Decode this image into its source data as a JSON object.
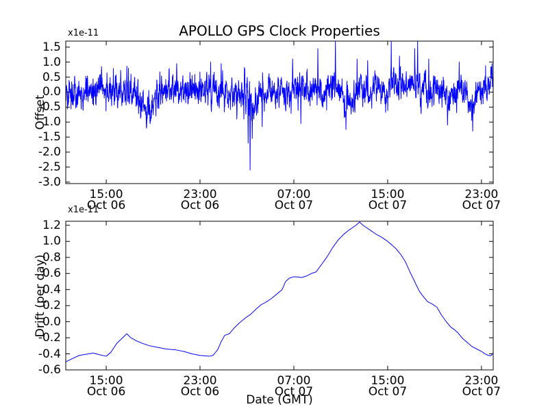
{
  "figure": {
    "background": "#ffffff",
    "frame_color": "#000000",
    "text_color": "#000000",
    "line_color": "#0000ff"
  },
  "chart_data": [
    {
      "id": "offset",
      "type": "line",
      "title": "APOLLO GPS Clock Properties",
      "ylabel": "Offset",
      "y_offset_text": "x1e-11",
      "y_unit_scale": "1e-11",
      "x_unit": "hours since Oct 06 00:00 GMT",
      "xlim": [
        11.55,
        48.0
      ],
      "ylim": [
        -3.05,
        1.7
      ],
      "grid": false,
      "legend": null,
      "line_color": "#0000ff",
      "yticks": {
        "values": [
          1.5,
          1.0,
          0.5,
          0.0,
          -0.5,
          -1.0,
          -1.5,
          -2.0,
          -2.5,
          -3.0
        ],
        "labels": [
          "1.5",
          "1.0",
          "0.5",
          "0.0",
          "-0.5",
          "-1.0",
          "-1.5",
          "-2.0",
          "-2.5",
          "-3.0"
        ]
      },
      "xticks": {
        "values": [
          15,
          23,
          31,
          39,
          47
        ],
        "labels": [
          [
            "15:00",
            "Oct 06"
          ],
          [
            "23:00",
            "Oct 06"
          ],
          [
            "07:00",
            "Oct 07"
          ],
          [
            "15:00",
            "Oct 07"
          ],
          [
            "23:00",
            "Oct 07"
          ]
        ]
      },
      "series_model": {
        "description": "dense noisy GPS clock offset samples, mean near 0, typical spread +/-0.7e-11, with isolated spikes",
        "baseline_anchors": [
          [
            11.55,
            -0.15
          ],
          [
            12.2,
            -0.05
          ],
          [
            12.8,
            -0.12
          ],
          [
            13.4,
            0.05
          ],
          [
            14.0,
            -0.15
          ],
          [
            14.5,
            0.2
          ],
          [
            15.0,
            0.0
          ],
          [
            15.6,
            0.15
          ],
          [
            16.2,
            0.0
          ],
          [
            16.8,
            -0.1
          ],
          [
            17.4,
            -0.05
          ],
          [
            18.0,
            -0.2
          ],
          [
            18.4,
            -0.5
          ],
          [
            18.9,
            -0.35
          ],
          [
            19.4,
            -0.1
          ],
          [
            20.0,
            0.05
          ],
          [
            20.6,
            0.1
          ],
          [
            21.2,
            0.05
          ],
          [
            21.8,
            0.1
          ],
          [
            22.4,
            0.15
          ],
          [
            23.0,
            0.1
          ],
          [
            23.6,
            0.25
          ],
          [
            24.2,
            0.1
          ],
          [
            24.8,
            0.05
          ],
          [
            25.4,
            -0.1
          ],
          [
            26.0,
            -0.05
          ],
          [
            26.6,
            -0.1
          ],
          [
            27.0,
            -0.3
          ],
          [
            27.6,
            -0.3
          ],
          [
            28.2,
            -0.05
          ],
          [
            28.8,
            0.0
          ],
          [
            29.4,
            -0.1
          ],
          [
            30.0,
            0.0
          ],
          [
            30.6,
            0.1
          ],
          [
            31.2,
            0.05
          ],
          [
            31.8,
            0.1
          ],
          [
            32.4,
            0.05
          ],
          [
            33.0,
            0.15
          ],
          [
            33.6,
            0.1
          ],
          [
            34.2,
            0.2
          ],
          [
            34.8,
            0.1
          ],
          [
            35.3,
            -0.25
          ],
          [
            35.8,
            -0.3
          ],
          [
            36.3,
            -0.05
          ],
          [
            36.8,
            0.1
          ],
          [
            37.4,
            0.0
          ],
          [
            38.0,
            0.15
          ],
          [
            38.6,
            0.1
          ],
          [
            39.2,
            0.3
          ],
          [
            39.8,
            0.15
          ],
          [
            40.4,
            0.2
          ],
          [
            41.0,
            0.25
          ],
          [
            41.6,
            0.15
          ],
          [
            42.2,
            0.1
          ],
          [
            42.8,
            0.05
          ],
          [
            43.4,
            -0.05
          ],
          [
            44.0,
            -0.25
          ],
          [
            44.6,
            -0.1
          ],
          [
            45.2,
            0.1
          ],
          [
            45.8,
            0.0
          ],
          [
            46.2,
            -0.4
          ],
          [
            46.7,
            -0.1
          ],
          [
            47.2,
            0.1
          ],
          [
            47.7,
            0.2
          ],
          [
            48.0,
            0.3
          ]
        ],
        "noise": {
          "seed": 20071006,
          "sigma": 0.23,
          "ar": 0.5,
          "samples": 2190
        },
        "spike_events": [
          [
            14.6,
            0.85
          ],
          [
            16.9,
            0.8
          ],
          [
            18.45,
            -1.2
          ],
          [
            18.75,
            -1.05
          ],
          [
            21.0,
            0.95
          ],
          [
            23.9,
            1.0
          ],
          [
            24.8,
            0.95
          ],
          [
            27.1,
            -1.7
          ],
          [
            27.27,
            -2.6
          ],
          [
            27.45,
            -1.55
          ],
          [
            28.3,
            -1.15
          ],
          [
            30.9,
            1.1
          ],
          [
            31.6,
            -1.05
          ],
          [
            33.05,
            1.45
          ],
          [
            34.55,
            1.7
          ],
          [
            35.45,
            -1.25
          ],
          [
            36.4,
            1.1
          ],
          [
            37.3,
            1.05
          ],
          [
            39.3,
            1.7
          ],
          [
            40.0,
            1.2
          ],
          [
            41.3,
            1.45
          ],
          [
            41.55,
            1.7
          ],
          [
            42.5,
            1.1
          ],
          [
            44.1,
            -1.1
          ],
          [
            45.1,
            1.0
          ],
          [
            46.25,
            -1.3
          ],
          [
            47.9,
            0.95
          ]
        ]
      }
    },
    {
      "id": "drift",
      "type": "line",
      "ylabel": "Drift (per day)",
      "xlabel": "Date (GMT)",
      "y_offset_text": "x1e-11",
      "y_unit_scale": "1e-11",
      "x_unit": "hours since Oct 06 00:00 GMT",
      "xlim": [
        11.55,
        48.0
      ],
      "ylim": [
        -0.6,
        1.25
      ],
      "grid": false,
      "legend": null,
      "line_color": "#0000ff",
      "yticks": {
        "values": [
          1.2,
          1.0,
          0.8,
          0.6,
          0.4,
          0.2,
          0.0,
          -0.2,
          -0.4,
          -0.6
        ],
        "labels": [
          "1.2",
          "1.0",
          "0.8",
          "0.6",
          "0.4",
          "0.2",
          "0.0",
          "-0.2",
          "-0.4",
          "-0.6"
        ]
      },
      "xticks": {
        "values": [
          15,
          23,
          31,
          39,
          47
        ],
        "labels": [
          [
            "15:00",
            "Oct 06"
          ],
          [
            "23:00",
            "Oct 06"
          ],
          [
            "07:00",
            "Oct 07"
          ],
          [
            "15:00",
            "Oct 07"
          ],
          [
            "23:00",
            "Oct 07"
          ]
        ]
      },
      "points": [
        [
          11.55,
          -0.5
        ],
        [
          12.1,
          -0.46
        ],
        [
          12.7,
          -0.42
        ],
        [
          13.3,
          -0.405
        ],
        [
          13.9,
          -0.39
        ],
        [
          14.4,
          -0.41
        ],
        [
          15.0,
          -0.43
        ],
        [
          15.4,
          -0.38
        ],
        [
          15.9,
          -0.27
        ],
        [
          16.4,
          -0.2
        ],
        [
          16.75,
          -0.15
        ],
        [
          17.1,
          -0.2
        ],
        [
          17.6,
          -0.24
        ],
        [
          18.1,
          -0.27
        ],
        [
          18.7,
          -0.3
        ],
        [
          19.4,
          -0.32
        ],
        [
          20.1,
          -0.34
        ],
        [
          20.9,
          -0.35
        ],
        [
          21.6,
          -0.37
        ],
        [
          22.3,
          -0.4
        ],
        [
          23.0,
          -0.42
        ],
        [
          23.4,
          -0.425
        ],
        [
          23.8,
          -0.43
        ],
        [
          24.1,
          -0.42
        ],
        [
          24.5,
          -0.35
        ],
        [
          24.8,
          -0.25
        ],
        [
          25.1,
          -0.17
        ],
        [
          25.5,
          -0.15
        ],
        [
          25.9,
          -0.08
        ],
        [
          26.4,
          -0.01
        ],
        [
          26.9,
          0.05
        ],
        [
          27.3,
          0.09
        ],
        [
          27.8,
          0.16
        ],
        [
          28.2,
          0.21
        ],
        [
          28.7,
          0.25
        ],
        [
          29.1,
          0.29
        ],
        [
          29.6,
          0.35
        ],
        [
          30.0,
          0.4
        ],
        [
          30.3,
          0.5
        ],
        [
          30.6,
          0.54
        ],
        [
          31.0,
          0.56
        ],
        [
          31.4,
          0.555
        ],
        [
          31.7,
          0.55
        ],
        [
          32.1,
          0.57
        ],
        [
          32.5,
          0.6
        ],
        [
          32.9,
          0.62
        ],
        [
          33.3,
          0.7
        ],
        [
          33.8,
          0.8
        ],
        [
          34.3,
          0.92
        ],
        [
          34.8,
          1.02
        ],
        [
          35.2,
          1.08
        ],
        [
          35.6,
          1.13
        ],
        [
          36.0,
          1.17
        ],
        [
          36.3,
          1.2
        ],
        [
          36.6,
          1.24
        ],
        [
          36.9,
          1.2
        ],
        [
          37.2,
          1.17
        ],
        [
          37.6,
          1.13
        ],
        [
          38.0,
          1.09
        ],
        [
          38.5,
          1.05
        ],
        [
          39.0,
          1.0
        ],
        [
          39.4,
          0.95
        ],
        [
          39.7,
          0.91
        ],
        [
          40.1,
          0.84
        ],
        [
          40.5,
          0.75
        ],
        [
          40.9,
          0.62
        ],
        [
          41.3,
          0.5
        ],
        [
          41.7,
          0.38
        ],
        [
          42.0,
          0.32
        ],
        [
          42.4,
          0.25
        ],
        [
          42.8,
          0.22
        ],
        [
          43.2,
          0.18
        ],
        [
          43.6,
          0.08
        ],
        [
          44.0,
          0.0
        ],
        [
          44.4,
          -0.07
        ],
        [
          44.7,
          -0.1
        ],
        [
          45.0,
          -0.14
        ],
        [
          45.4,
          -0.21
        ],
        [
          45.8,
          -0.26
        ],
        [
          46.2,
          -0.31
        ],
        [
          46.6,
          -0.34
        ],
        [
          47.0,
          -0.37
        ],
        [
          47.3,
          -0.4
        ],
        [
          47.6,
          -0.42
        ],
        [
          47.8,
          -0.425
        ],
        [
          48.0,
          -0.39
        ]
      ]
    }
  ]
}
